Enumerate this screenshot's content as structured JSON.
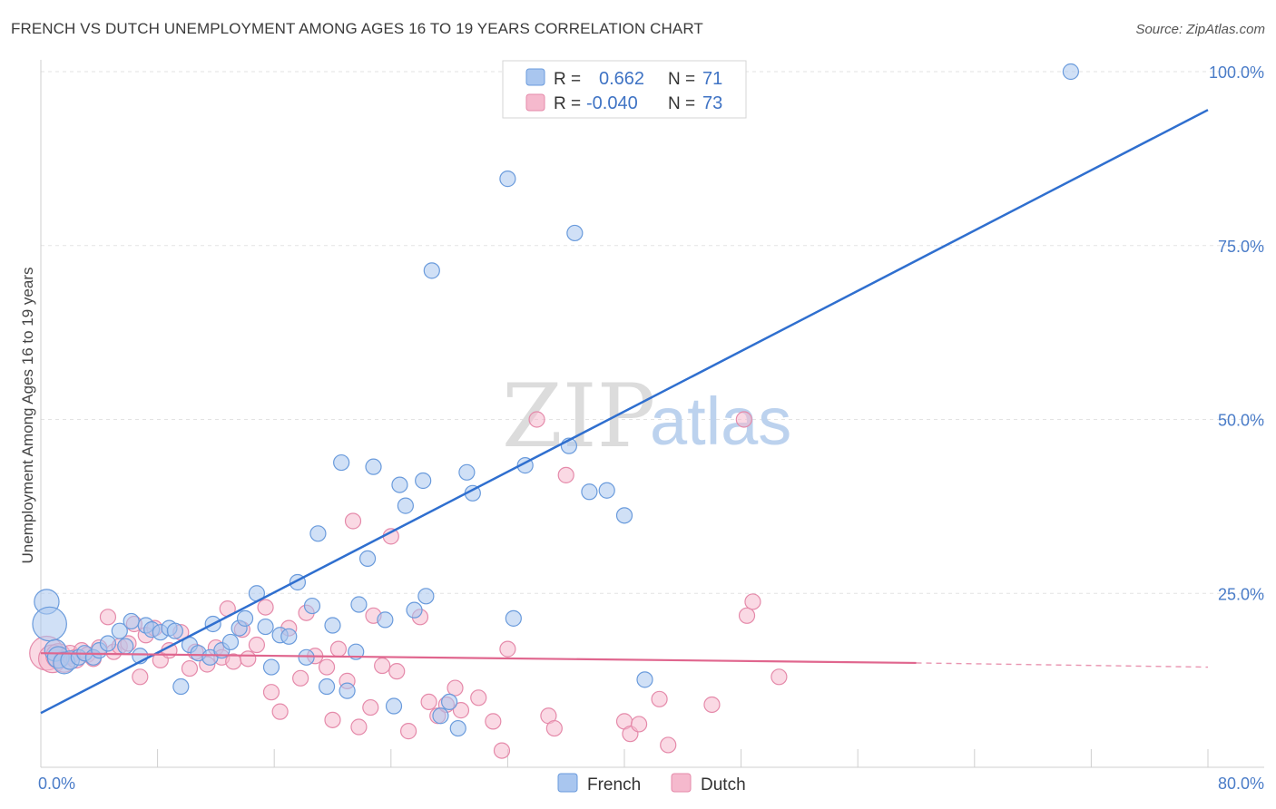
{
  "title": "FRENCH VS DUTCH UNEMPLOYMENT AMONG AGES 16 TO 19 YEARS CORRELATION CHART",
  "source": "Source: ZipAtlas.com",
  "watermark": {
    "zip": "ZIP",
    "atlas": "atlas"
  },
  "legend_top": {
    "french": {
      "r_label": "R =",
      "r_value": "0.662",
      "n_label": "N =",
      "n_value": "71"
    },
    "dutch": {
      "r_label": "R =",
      "r_value": "-0.040",
      "n_label": "N =",
      "n_value": "73"
    }
  },
  "legend_bottom": {
    "french": "French",
    "dutch": "Dutch"
  },
  "colors": {
    "french_fill": "#a9c6ef",
    "french_stroke": "#6a9bdc",
    "french_line": "#2f6fcf",
    "dutch_fill": "#f5b9cd",
    "dutch_stroke": "#e58aaa",
    "dutch_line": "#e0668e",
    "tick_text": "#4a7cc8"
  },
  "chart_data": {
    "type": "scatter",
    "title": "FRENCH VS DUTCH UNEMPLOYMENT AMONG AGES 16 TO 19 YEARS CORRELATION CHART",
    "xlabel": "",
    "ylabel": "Unemployment Among Ages 16 to 19 years",
    "xlim": [
      0,
      80
    ],
    "ylim": [
      0,
      100
    ],
    "x_tick_labels": [
      "0.0%",
      "80.0%"
    ],
    "y_ticks": [
      25,
      50,
      75,
      100
    ],
    "y_tick_labels": [
      "25.0%",
      "50.0%",
      "75.0%",
      "100.0%"
    ],
    "grid": true,
    "legend_position": "top-center",
    "series": [
      {
        "name": "French",
        "r": 0.662,
        "n": 71,
        "trend": {
          "x": [
            0,
            80
          ],
          "y": [
            7.8,
            94.5
          ]
        },
        "points": [
          [
            0.4,
            23.8,
            1.6
          ],
          [
            0.6,
            20.6,
            2.2
          ],
          [
            1.0,
            16.8,
            1.4
          ],
          [
            1.2,
            15.8,
            1.4
          ],
          [
            1.6,
            15.0,
            1.4
          ],
          [
            2.0,
            15.4,
            1.2
          ],
          [
            2.6,
            15.8,
            1.0
          ],
          [
            3.0,
            16.4,
            1.0
          ],
          [
            3.6,
            15.8,
            1.0
          ],
          [
            4.0,
            16.8,
            1.0
          ],
          [
            4.6,
            17.8,
            1.0
          ],
          [
            5.4,
            19.6,
            1.0
          ],
          [
            5.8,
            17.4,
            1.0
          ],
          [
            6.2,
            21.0,
            1.0
          ],
          [
            6.8,
            16.0,
            1.0
          ],
          [
            7.2,
            20.4,
            1.0
          ],
          [
            7.6,
            19.8,
            1.0
          ],
          [
            8.2,
            19.4,
            1.0
          ],
          [
            8.8,
            20.0,
            1.0
          ],
          [
            9.2,
            19.6,
            1.0
          ],
          [
            9.6,
            11.6,
            1.0
          ],
          [
            10.2,
            17.6,
            1.0
          ],
          [
            10.8,
            16.4,
            1.0
          ],
          [
            11.6,
            15.8,
            1.0
          ],
          [
            11.8,
            20.6,
            1.0
          ],
          [
            12.4,
            16.8,
            1.0
          ],
          [
            13.0,
            18.0,
            1.0
          ],
          [
            13.6,
            20.0,
            1.0
          ],
          [
            14.0,
            21.4,
            1.0
          ],
          [
            14.8,
            25.0,
            1.0
          ],
          [
            15.4,
            20.2,
            1.0
          ],
          [
            15.8,
            14.4,
            1.0
          ],
          [
            16.4,
            19.0,
            1.0
          ],
          [
            17.0,
            18.8,
            1.0
          ],
          [
            17.6,
            26.6,
            1.0
          ],
          [
            18.2,
            15.8,
            1.0
          ],
          [
            18.6,
            23.2,
            1.0
          ],
          [
            19.0,
            33.6,
            1.0
          ],
          [
            19.6,
            11.6,
            1.0
          ],
          [
            20.0,
            20.4,
            1.0
          ],
          [
            20.6,
            43.8,
            1.0
          ],
          [
            21.0,
            11.0,
            1.0
          ],
          [
            21.6,
            16.6,
            1.0
          ],
          [
            21.8,
            23.4,
            1.0
          ],
          [
            22.4,
            30.0,
            1.0
          ],
          [
            22.8,
            43.2,
            1.0
          ],
          [
            23.6,
            21.2,
            1.0
          ],
          [
            24.2,
            8.8,
            1.0
          ],
          [
            24.6,
            40.6,
            1.0
          ],
          [
            25.0,
            37.6,
            1.0
          ],
          [
            25.6,
            22.6,
            1.0
          ],
          [
            26.2,
            41.2,
            1.0
          ],
          [
            26.4,
            24.6,
            1.0
          ],
          [
            26.8,
            71.4,
            1.0
          ],
          [
            27.4,
            7.4,
            1.0
          ],
          [
            28.0,
            9.4,
            1.0
          ],
          [
            28.6,
            5.6,
            1.0
          ],
          [
            29.2,
            42.4,
            1.0
          ],
          [
            29.6,
            39.4,
            1.0
          ],
          [
            32.0,
            84.6,
            1.0
          ],
          [
            32.4,
            21.4,
            1.0
          ],
          [
            33.2,
            43.4,
            1.0
          ],
          [
            36.2,
            46.2,
            1.0
          ],
          [
            36.6,
            76.8,
            1.0
          ],
          [
            37.6,
            39.6,
            1.0
          ],
          [
            38.6,
            100.0,
            1.0
          ],
          [
            38.8,
            39.8,
            1.0
          ],
          [
            39.2,
            100.0,
            1.0
          ],
          [
            40.0,
            36.2,
            1.0
          ],
          [
            41.4,
            12.6,
            1.0
          ],
          [
            70.6,
            100.0,
            1.0
          ]
        ]
      },
      {
        "name": "Dutch",
        "r": -0.04,
        "n": 73,
        "trend": {
          "x": [
            0,
            60
          ],
          "y": [
            16.4,
            15.0
          ]
        },
        "trend_dashed": {
          "x": [
            60,
            80
          ],
          "y": [
            15.0,
            14.4
          ]
        },
        "points": [
          [
            0.4,
            16.4,
            2.2
          ],
          [
            0.8,
            15.6,
            1.8
          ],
          [
            1.2,
            16.0,
            1.6
          ],
          [
            1.6,
            15.2,
            1.4
          ],
          [
            2.0,
            16.2,
            1.2
          ],
          [
            2.4,
            15.6,
            1.2
          ],
          [
            2.8,
            16.8,
            1.0
          ],
          [
            3.2,
            16.2,
            1.0
          ],
          [
            3.6,
            15.6,
            1.0
          ],
          [
            4.0,
            17.2,
            1.0
          ],
          [
            4.6,
            21.6,
            1.0
          ],
          [
            5.0,
            16.6,
            1.0
          ],
          [
            5.4,
            17.4,
            1.0
          ],
          [
            6.0,
            17.8,
            1.0
          ],
          [
            6.4,
            20.6,
            1.0
          ],
          [
            6.8,
            13.0,
            1.0
          ],
          [
            7.2,
            19.0,
            1.0
          ],
          [
            7.8,
            20.0,
            1.0
          ],
          [
            8.2,
            15.4,
            1.0
          ],
          [
            8.8,
            16.8,
            1.0
          ],
          [
            9.6,
            19.4,
            1.0
          ],
          [
            10.2,
            14.2,
            1.0
          ],
          [
            10.6,
            16.6,
            1.0
          ],
          [
            11.4,
            14.8,
            1.0
          ],
          [
            12.0,
            17.2,
            1.0
          ],
          [
            12.4,
            15.8,
            1.0
          ],
          [
            12.8,
            22.8,
            1.0
          ],
          [
            13.2,
            15.2,
            1.0
          ],
          [
            13.8,
            19.8,
            1.0
          ],
          [
            14.2,
            15.6,
            1.0
          ],
          [
            14.8,
            17.6,
            1.0
          ],
          [
            15.4,
            23.0,
            1.0
          ],
          [
            15.8,
            10.8,
            1.0
          ],
          [
            16.4,
            8.0,
            1.0
          ],
          [
            17.0,
            20.0,
            1.0
          ],
          [
            17.8,
            12.8,
            1.0
          ],
          [
            18.2,
            22.2,
            1.0
          ],
          [
            18.8,
            16.0,
            1.0
          ],
          [
            19.6,
            14.4,
            1.0
          ],
          [
            20.0,
            6.8,
            1.0
          ],
          [
            20.4,
            17.0,
            1.0
          ],
          [
            21.0,
            12.4,
            1.0
          ],
          [
            21.4,
            35.4,
            1.0
          ],
          [
            21.8,
            5.8,
            1.0
          ],
          [
            22.6,
            8.6,
            1.0
          ],
          [
            22.8,
            21.8,
            1.0
          ],
          [
            23.4,
            14.6,
            1.0
          ],
          [
            24.0,
            33.2,
            1.0
          ],
          [
            24.4,
            13.8,
            1.0
          ],
          [
            25.2,
            5.2,
            1.0
          ],
          [
            26.0,
            21.6,
            1.0
          ],
          [
            26.6,
            9.4,
            1.0
          ],
          [
            27.2,
            7.4,
            1.0
          ],
          [
            27.8,
            9.0,
            1.0
          ],
          [
            28.4,
            11.4,
            1.0
          ],
          [
            28.8,
            8.2,
            1.0
          ],
          [
            30.0,
            10.0,
            1.0
          ],
          [
            31.0,
            6.6,
            1.0
          ],
          [
            31.6,
            2.4,
            1.0
          ],
          [
            32.0,
            17.0,
            1.0
          ],
          [
            34.0,
            50.0,
            1.0
          ],
          [
            34.8,
            7.4,
            1.0
          ],
          [
            35.2,
            5.6,
            1.0
          ],
          [
            36.0,
            42.0,
            1.0
          ],
          [
            40.0,
            6.6,
            1.0
          ],
          [
            40.4,
            4.8,
            1.0
          ],
          [
            41.0,
            6.2,
            1.0
          ],
          [
            42.4,
            9.8,
            1.0
          ],
          [
            43.0,
            3.2,
            1.0
          ],
          [
            46.0,
            9.0,
            1.0
          ],
          [
            48.2,
            50.0,
            1.0
          ],
          [
            48.4,
            21.8,
            1.0
          ],
          [
            48.8,
            23.8,
            1.0
          ],
          [
            50.6,
            13.0,
            1.0
          ]
        ]
      }
    ]
  }
}
